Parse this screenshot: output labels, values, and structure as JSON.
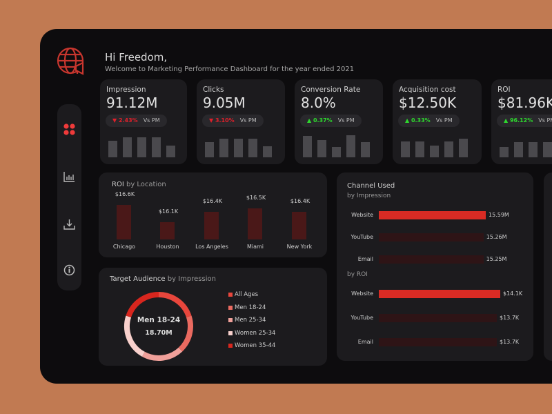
{
  "header": {
    "greeting": "Hi Freedom,",
    "subtitle": "Welcome to Marketing Performance Dashboard for the year ended 2021"
  },
  "colors": {
    "accent": "#d9302a",
    "background": "#c17a52",
    "panel": "#0d0c0e",
    "card": "#1c1b1e",
    "down": "#e0202a",
    "up": "#2ed82e"
  },
  "sidebar": {
    "items": [
      {
        "icon": "grid-icon",
        "active": true
      },
      {
        "icon": "bar-chart-icon"
      },
      {
        "icon": "download-icon"
      },
      {
        "icon": "info-icon"
      }
    ]
  },
  "kpis": [
    {
      "label": "Impression",
      "value": "91.12M",
      "change": "▼ 2.43%",
      "direction": "down",
      "vs": "Vs PM",
      "spark": [
        48,
        58,
        58,
        58,
        35
      ]
    },
    {
      "label": "Clicks",
      "value": "9.05M",
      "change": "▼ 3.10%",
      "direction": "down",
      "vs": "Vs PM",
      "spark": [
        45,
        55,
        55,
        55,
        32
      ]
    },
    {
      "label": "Conversion Rate",
      "value": "8.0%",
      "change": "▲ 0.37%",
      "direction": "up",
      "vs": "Vs PM",
      "spark": [
        62,
        50,
        30,
        65,
        45
      ]
    },
    {
      "label": "Acquisition cost",
      "value": "$12.50K",
      "change": "▲ 0.33%",
      "direction": "up",
      "vs": "Vs PM",
      "spark": [
        46,
        46,
        34,
        46,
        54
      ]
    },
    {
      "label": "ROI",
      "value": "$81.96K",
      "change": "▲ 96.12%",
      "direction": "up",
      "vs": "Vs PM",
      "spark": [
        30,
        45,
        45,
        45,
        45
      ]
    }
  ],
  "roi_location": {
    "title": "ROI",
    "subtitle": "by Location",
    "bars": [
      {
        "city": "Chicago",
        "label": "$16.6K",
        "value": 16.6
      },
      {
        "city": "Houston",
        "label": "$16.1K",
        "value": 16.1
      },
      {
        "city": "Los Angeles",
        "label": "$16.4K",
        "value": 16.4
      },
      {
        "city": "Miami",
        "label": "$16.5K",
        "value": 16.5
      },
      {
        "city": "New York",
        "label": "$16.4K",
        "value": 16.4
      }
    ]
  },
  "audience": {
    "title": "Target Audience",
    "subtitle": "by Impression",
    "center_label": "Men 18-24",
    "center_value": "18.70M",
    "segments": [
      {
        "name": "All Ages",
        "color": "#e8463c",
        "share_pct": 20
      },
      {
        "name": "Men 18-24",
        "color": "#ea6a60",
        "share_pct": 18
      },
      {
        "name": "Men 25-34",
        "color": "#f0a09a",
        "share_pct": 20
      },
      {
        "name": "Women 25-34",
        "color": "#f8d0cc",
        "share_pct": 22
      },
      {
        "name": "Women 35-44",
        "color": "#d8261e",
        "share_pct": 20
      }
    ]
  },
  "channel": {
    "title": "Channel Used",
    "by_impression": "by Impression",
    "by_roi": "by ROI",
    "impression": [
      {
        "name": "Website",
        "label": "15.59M",
        "value": 15.59,
        "highlight": true
      },
      {
        "name": "YouTube",
        "label": "15.26M",
        "value": 15.26
      },
      {
        "name": "Email",
        "label": "15.25M",
        "value": 15.25
      }
    ],
    "roi": [
      {
        "name": "Website",
        "label": "$14.1K",
        "value": 14.1,
        "highlight": true
      },
      {
        "name": "YouTube",
        "label": "$13.7K",
        "value": 13.7
      },
      {
        "name": "Email",
        "label": "$13.7K",
        "value": 13.7
      }
    ]
  }
}
